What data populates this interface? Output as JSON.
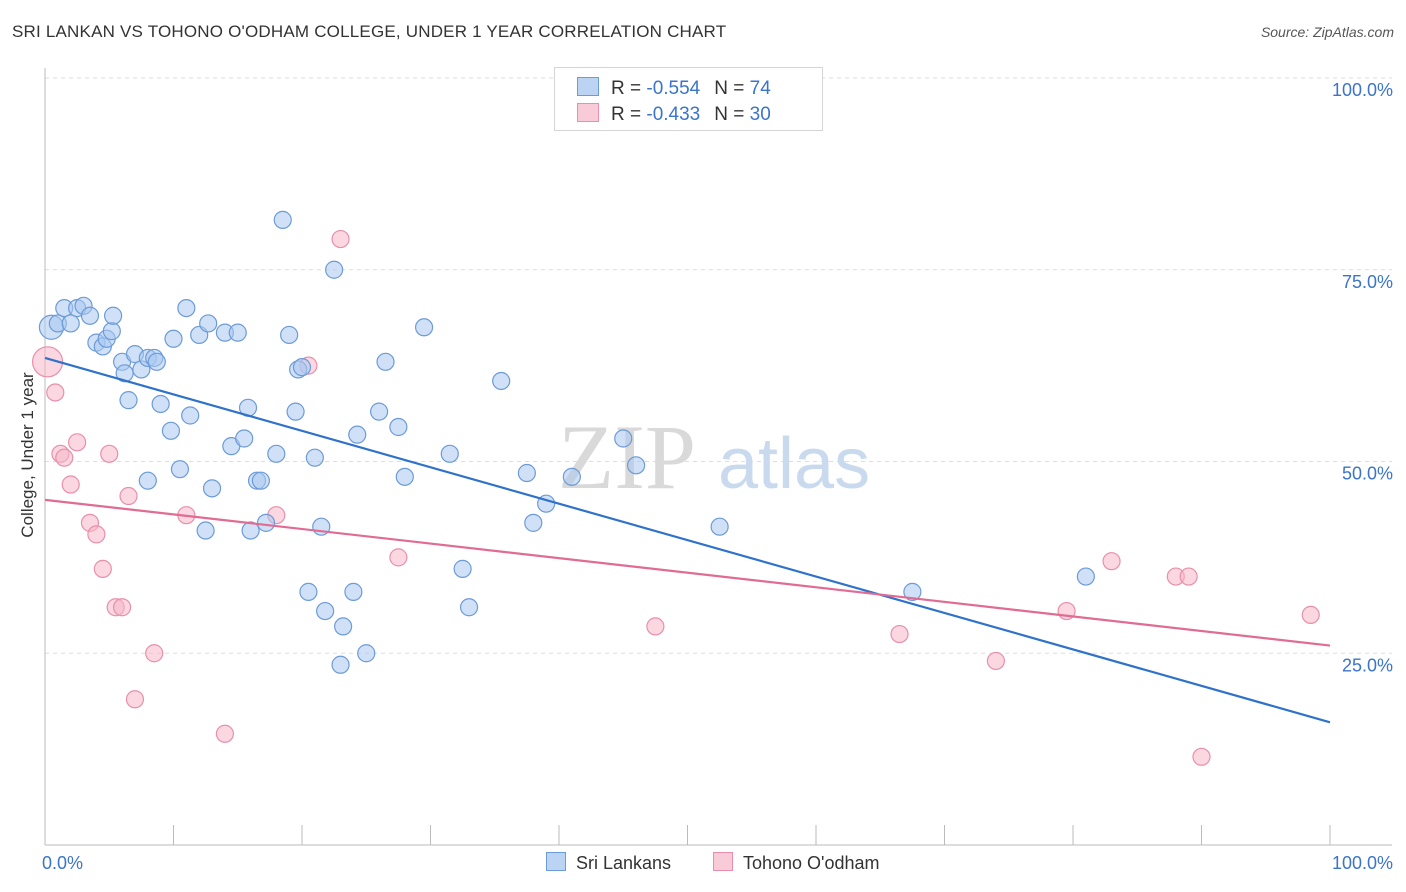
{
  "title": "SRI LANKAN VS TOHONO O'ODHAM COLLEGE, UNDER 1 YEAR CORRELATION CHART",
  "source": "Source: ZipAtlas.com",
  "watermark": {
    "zip": "ZIP",
    "atlas": "atlas"
  },
  "colors": {
    "blue_fill": "#a9c8f0",
    "blue_stroke": "#6c9bd8",
    "blue_line": "#2f72c9",
    "pink_fill": "#f6b7c9",
    "pink_stroke": "#e98fab",
    "pink_line": "#e06b93",
    "axis_label": "#3b74c9",
    "grid": "#dddddd"
  },
  "legend_top": {
    "rows": [
      {
        "r_label": "R = ",
        "r_value": "-0.554",
        "n_label": "N = ",
        "n_value": "74"
      },
      {
        "r_label": "R = ",
        "r_value": "-0.433",
        "n_label": "N = ",
        "n_value": "30"
      }
    ]
  },
  "chart_data": {
    "type": "scatter",
    "title": "SRI LANKAN VS TOHONO O'ODHAM COLLEGE, UNDER 1 YEAR CORRELATION CHART",
    "xlabel": "",
    "ylabel": "College, Under 1 year",
    "xlim": [
      0,
      100
    ],
    "ylim": [
      0,
      100
    ],
    "x_tick_labels": [
      "0.0%",
      "100.0%"
    ],
    "y_ticks": [
      {
        "value": 100,
        "label": "100.0%"
      },
      {
        "value": 75,
        "label": "75.0%"
      },
      {
        "value": 50,
        "label": "50.0%"
      },
      {
        "value": 25,
        "label": "25.0%"
      }
    ],
    "grid": true,
    "legend_position": "bottom",
    "series": [
      {
        "name": "Sri Lankans",
        "color": "#a9c8f0",
        "trend": {
          "x": [
            0,
            100
          ],
          "y": [
            63.5,
            16
          ]
        },
        "points": [
          [
            0.5,
            67.5
          ],
          [
            1.0,
            68.0
          ],
          [
            1.5,
            70.0
          ],
          [
            2.0,
            68.0
          ],
          [
            2.5,
            70.0
          ],
          [
            3.0,
            70.3
          ],
          [
            3.5,
            69.0
          ],
          [
            4.0,
            65.5
          ],
          [
            4.5,
            65.0
          ],
          [
            4.8,
            66.0
          ],
          [
            5.2,
            67.0
          ],
          [
            5.3,
            69.0
          ],
          [
            6.0,
            63.0
          ],
          [
            6.2,
            61.5
          ],
          [
            6.5,
            58.0
          ],
          [
            7.0,
            64.0
          ],
          [
            7.5,
            62.0
          ],
          [
            8.0,
            63.5
          ],
          [
            8.5,
            63.5
          ],
          [
            8.7,
            63.0
          ],
          [
            8.0,
            47.5
          ],
          [
            9.0,
            57.5
          ],
          [
            9.8,
            54.0
          ],
          [
            10.0,
            66.0
          ],
          [
            10.5,
            49.0
          ],
          [
            11.0,
            70.0
          ],
          [
            11.3,
            56.0
          ],
          [
            12.0,
            66.5
          ],
          [
            12.5,
            41.0
          ],
          [
            12.7,
            68.0
          ],
          [
            13.0,
            46.5
          ],
          [
            14.0,
            66.8
          ],
          [
            14.5,
            52.0
          ],
          [
            15.0,
            66.8
          ],
          [
            15.5,
            53.0
          ],
          [
            15.8,
            57.0
          ],
          [
            16.0,
            41.0
          ],
          [
            16.5,
            47.5
          ],
          [
            16.8,
            47.5
          ],
          [
            17.2,
            42.0
          ],
          [
            18.0,
            51.0
          ],
          [
            18.5,
            81.5
          ],
          [
            19.0,
            66.5
          ],
          [
            19.5,
            56.5
          ],
          [
            19.7,
            62.0
          ],
          [
            20.0,
            62.3
          ],
          [
            20.5,
            33.0
          ],
          [
            21.0,
            50.5
          ],
          [
            21.5,
            41.5
          ],
          [
            21.8,
            30.5
          ],
          [
            22.5,
            75.0
          ],
          [
            23.0,
            23.5
          ],
          [
            23.2,
            28.5
          ],
          [
            24.0,
            33.0
          ],
          [
            24.3,
            53.5
          ],
          [
            25.0,
            25.0
          ],
          [
            26.0,
            56.5
          ],
          [
            26.5,
            63.0
          ],
          [
            27.5,
            54.5
          ],
          [
            28.0,
            48.0
          ],
          [
            29.5,
            67.5
          ],
          [
            31.5,
            51.0
          ],
          [
            32.5,
            36.0
          ],
          [
            33.0,
            31.0
          ],
          [
            35.5,
            60.5
          ],
          [
            37.5,
            48.5
          ],
          [
            38.0,
            42.0
          ],
          [
            39.0,
            44.5
          ],
          [
            41.0,
            48.0
          ],
          [
            45.0,
            53.0
          ],
          [
            46.0,
            49.5
          ],
          [
            52.5,
            41.5
          ],
          [
            67.5,
            33.0
          ],
          [
            81.0,
            35.0
          ]
        ]
      },
      {
        "name": "Tohono O'odham",
        "color": "#f6b7c9",
        "trend": {
          "x": [
            0,
            100
          ],
          "y": [
            45,
            26
          ]
        },
        "points": [
          [
            0.8,
            59.0
          ],
          [
            1.2,
            51.0
          ],
          [
            1.5,
            50.5
          ],
          [
            2.0,
            47.0
          ],
          [
            2.5,
            52.5
          ],
          [
            3.5,
            42.0
          ],
          [
            4.0,
            40.5
          ],
          [
            4.5,
            36.0
          ],
          [
            5.0,
            51.0
          ],
          [
            5.5,
            31.0
          ],
          [
            6.0,
            31.0
          ],
          [
            6.5,
            45.5
          ],
          [
            7.0,
            19.0
          ],
          [
            8.5,
            25.0
          ],
          [
            11.0,
            43.0
          ],
          [
            14.0,
            14.5
          ],
          [
            18.0,
            43.0
          ],
          [
            20.5,
            62.5
          ],
          [
            23.0,
            79.0
          ],
          [
            27.5,
            37.5
          ],
          [
            47.5,
            28.5
          ],
          [
            66.5,
            27.5
          ],
          [
            74.0,
            24.0
          ],
          [
            79.5,
            30.5
          ],
          [
            83.0,
            37.0
          ],
          [
            88.0,
            35.0
          ],
          [
            89.0,
            35.0
          ],
          [
            90.0,
            11.5
          ],
          [
            98.5,
            30.0
          ],
          [
            0.2,
            63.0
          ]
        ]
      }
    ]
  }
}
